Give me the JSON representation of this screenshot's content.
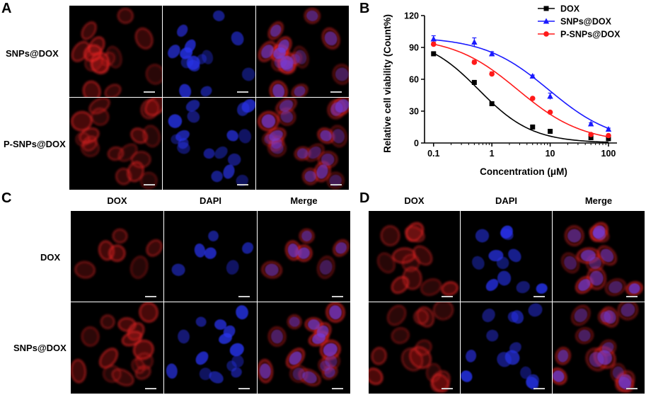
{
  "panels": {
    "A": {
      "letter": "A",
      "rows": [
        "SNPs@DOX",
        "P-SNPs@DOX"
      ]
    },
    "B": {
      "letter": "B"
    },
    "C": {
      "letter": "C",
      "columns": [
        "DOX",
        "DAPI",
        "Merge"
      ],
      "rows": [
        "DOX",
        "SNPs@DOX"
      ]
    },
    "D": {
      "letter": "D",
      "columns": [
        "DOX",
        "DAPI",
        "Merge"
      ]
    }
  },
  "chart_data": {
    "type": "scatter",
    "title": "",
    "xlabel": "Concentration (μM)",
    "ylabel": "Relative cell viability (Count%)",
    "x_scale": "log",
    "xlim": [
      0.07,
      140
    ],
    "ylim": [
      0,
      120
    ],
    "x_ticks": [
      "0.1",
      "1",
      "10",
      "100"
    ],
    "y_ticks": [
      "0",
      "30",
      "60",
      "90",
      "120"
    ],
    "legend_position": "top-right",
    "series": [
      {
        "name": "DOX",
        "marker": "square",
        "color": "#000000",
        "x": [
          0.1,
          0.5,
          1,
          5,
          10,
          50,
          100
        ],
        "y": [
          84,
          57,
          37,
          15,
          11,
          5,
          4
        ],
        "err": [
          2,
          2,
          1,
          2,
          1,
          1,
          1
        ],
        "fit": {
          "top": 100,
          "bottom": 0,
          "ic50": 0.6,
          "hill": 0.95
        }
      },
      {
        "name": "SNPs@DOX",
        "marker": "triangle",
        "color": "#1a1aff",
        "x": [
          0.1,
          0.5,
          1,
          5,
          10,
          50,
          100
        ],
        "y": [
          98,
          95,
          84,
          63,
          44,
          18,
          13
        ],
        "err": [
          3,
          4,
          2,
          1,
          3,
          1,
          1
        ],
        "fit": {
          "top": 100,
          "bottom": 0,
          "ic50": 9.5,
          "hill": 0.78
        }
      },
      {
        "name": "P-SNPs@DOX",
        "marker": "circle",
        "color": "#ff1a1a",
        "x": [
          0.1,
          0.5,
          1,
          5,
          10,
          50,
          100
        ],
        "y": [
          93,
          76,
          65,
          42,
          29,
          8,
          7
        ],
        "err": [
          2,
          2,
          2,
          1,
          1,
          1,
          1
        ],
        "fit": {
          "top": 100,
          "bottom": 0,
          "ic50": 2.8,
          "hill": 0.78
        }
      }
    ]
  }
}
